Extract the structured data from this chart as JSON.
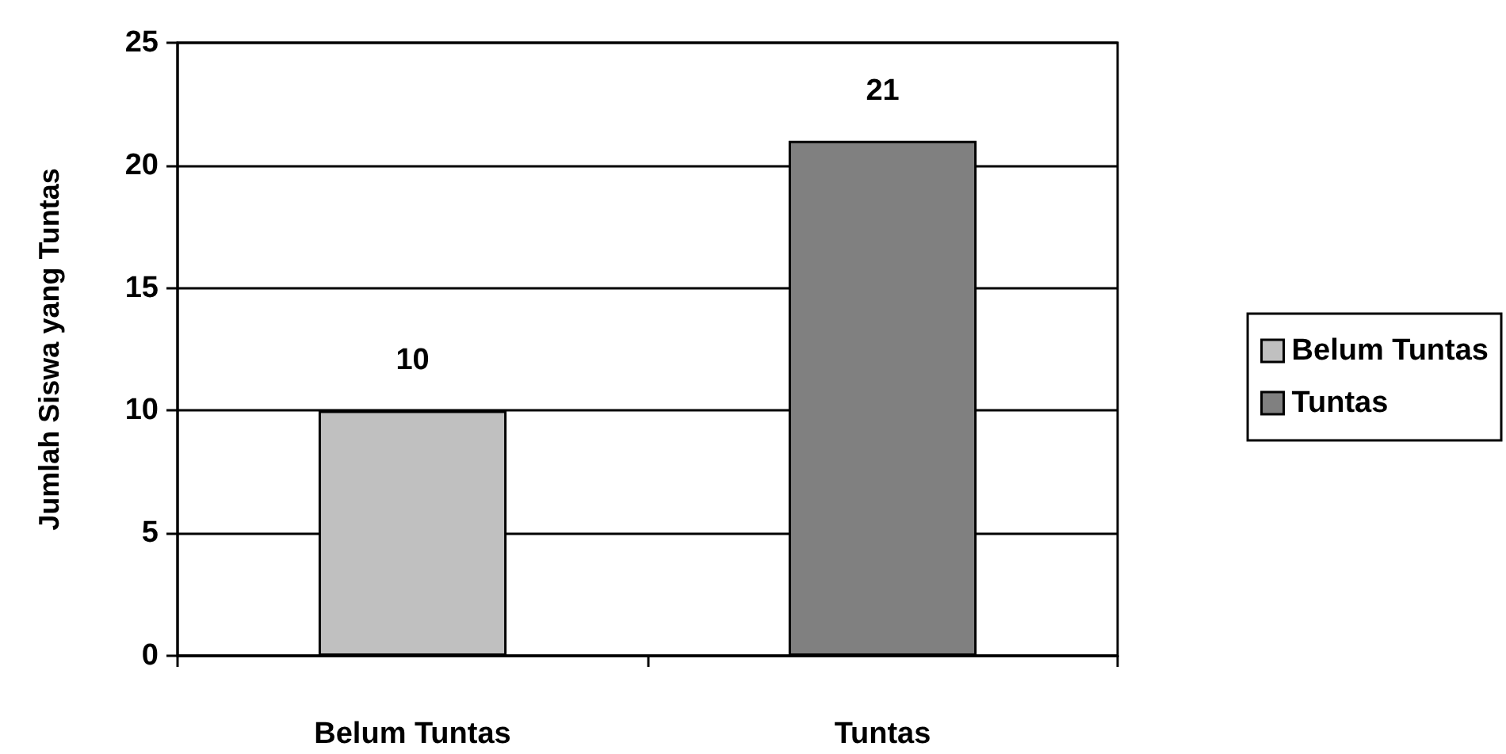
{
  "chart_data": {
    "type": "bar",
    "ylabel": "Jumlah Siswa yang Tuntas",
    "categories": [
      "Belum Tuntas",
      "Tuntas"
    ],
    "series": [
      {
        "name": "Belum Tuntas",
        "color": "#c0c0c0",
        "values": [
          10,
          null
        ]
      },
      {
        "name": "Tuntas",
        "color": "#808080",
        "values": [
          null,
          21
        ]
      }
    ],
    "ylim": [
      0,
      25
    ],
    "yticks": [
      0,
      5,
      10,
      15,
      20,
      25
    ],
    "grid": "y",
    "legend": "right",
    "data_labels": true
  }
}
